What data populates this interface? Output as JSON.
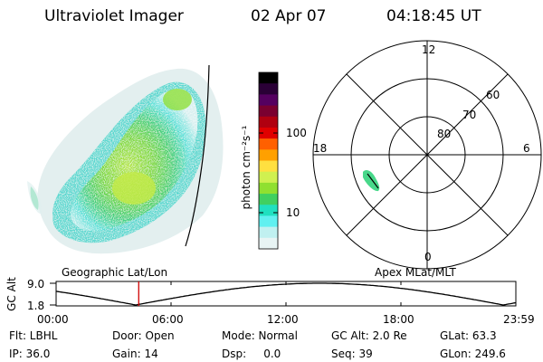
{
  "header": {
    "instrument": "Ultraviolet Imager",
    "date": "02 Apr 07",
    "time": "04:18:45 UT"
  },
  "colorbar": {
    "unit_label": "photon cm⁻²s⁻¹",
    "ticks": [
      "100",
      "10"
    ],
    "colors": [
      "#000000",
      "#2a0036",
      "#550060",
      "#7a0030",
      "#b00010",
      "#e00000",
      "#ff6000",
      "#ffa000",
      "#ffe040",
      "#d0f050",
      "#90e030",
      "#40d060",
      "#20e0c0",
      "#60f0f0",
      "#c0f0f0",
      "#e8f4f4"
    ]
  },
  "polar_plot": {
    "mlt_labels": {
      "top": "12",
      "right": "6",
      "bottom": "0",
      "left": "18"
    },
    "lat_labels": [
      "60",
      "70",
      "80"
    ]
  },
  "geo_label": "Geographic Lat/Lon",
  "apex_label": "Apex  MLat/MLT",
  "altitude_strip": {
    "axis_label": "GC Alt",
    "y_ticks": [
      "9.0",
      "1.8"
    ],
    "x_ticks": [
      "00:00",
      "06:00",
      "12:00",
      "18:00",
      "23:59"
    ],
    "current_time_hours": 4.3125,
    "marker_color": "#d00000"
  },
  "status": {
    "flt": "Flt: LBHL",
    "door": "Door: Open",
    "mode": "Mode: Normal",
    "gc_alt": "GC Alt: 2.0 Re",
    "glat": "GLat:  63.3",
    "ip": "IP: 36.0",
    "gain": "Gain: 14",
    "dsp": "Dsp:     0.0",
    "seq": "Seq: 39",
    "glon": "GLon: 249.6"
  }
}
